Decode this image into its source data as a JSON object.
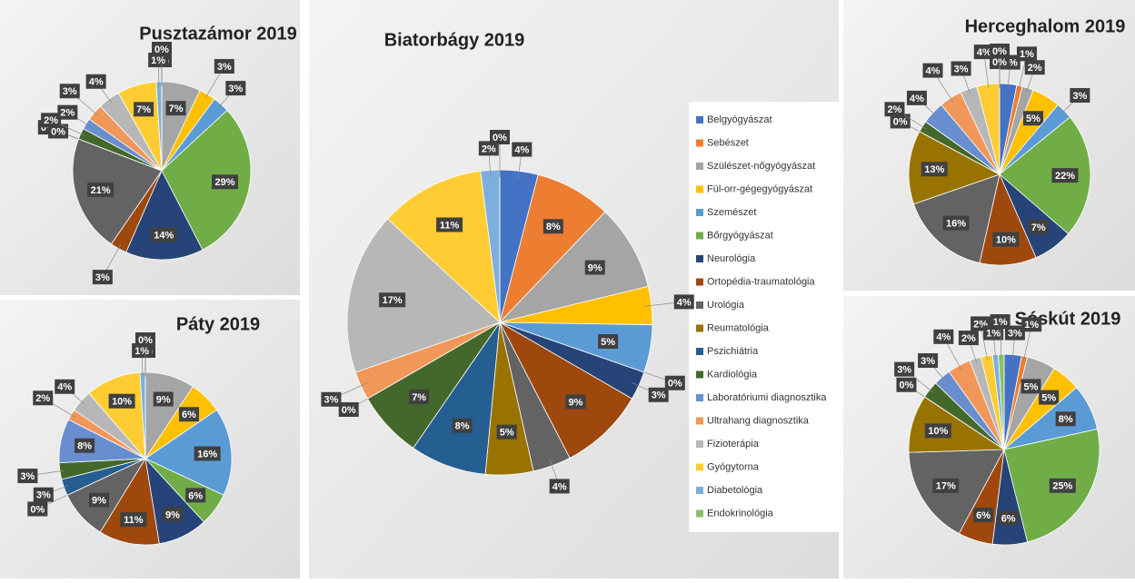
{
  "chart_data": [
    {
      "type": "pie",
      "title": "Biatorbágy 2019",
      "categories": [
        "Belgyógyászat",
        "Sebészet",
        "Szülészet-nőgyógyászat",
        "Fül-orr-gégegyógyászat",
        "Szemészet",
        "Bőrgyógyászat",
        "Neurológia",
        "Ortopédia-traumatológia",
        "Urológia",
        "Reumatológia",
        "Pszichiátria",
        "Kardiológia",
        "Laboratóriumi diagnosztika",
        "Ultrahang diagnosztika",
        "Fizioterápia",
        "Gyógytorna",
        "Diabetológia",
        "Endokrinológia"
      ],
      "colors": [
        "#4472c4",
        "#ed7d31",
        "#a5a5a5",
        "#ffc000",
        "#5b9bd5",
        "#70ad47",
        "#264478",
        "#9e480e",
        "#636363",
        "#997300",
        "#255e91",
        "#43682b",
        "#698ed0",
        "#f1975a",
        "#b7b7b7",
        "#ffcd33",
        "#7cafdd",
        "#8cc168"
      ],
      "values": [
        4,
        8,
        9,
        4,
        5,
        0,
        3,
        9,
        4,
        5,
        8,
        7,
        0,
        3,
        17,
        11,
        2,
        0
      ],
      "value_labels": [
        "4%",
        "8%",
        "9%",
        "4%",
        "5%",
        "0%",
        "3%",
        "9%",
        "4%",
        "5%",
        "8%",
        "7%",
        "0%",
        "3%",
        "17%",
        "11%",
        "2%",
        "0%"
      ],
      "legend": "right"
    },
    {
      "type": "pie",
      "title": "Pusztazámor 2019",
      "values": [
        0,
        0,
        7,
        3,
        3,
        29,
        14,
        3,
        21,
        0,
        0,
        2,
        2,
        3,
        4,
        7,
        1,
        0
      ],
      "value_labels": [
        "0%",
        "0%",
        "7%",
        "3%",
        "3%",
        "29%",
        "14%",
        "3%",
        "21%",
        "0%",
        "0%",
        "2%",
        "2%",
        "3%",
        "4%",
        "7%",
        "1%",
        "0%"
      ]
    },
    {
      "type": "pie",
      "title": "Páty 2019",
      "values": [
        0,
        0,
        9,
        6,
        16,
        6,
        9,
        11,
        9,
        0,
        3,
        3,
        8,
        2,
        4,
        10,
        1,
        0
      ],
      "value_labels": [
        "0%",
        "0%",
        "9%",
        "6%",
        "16%",
        "6%",
        "9%",
        "11%",
        "9%",
        "0%",
        "3%",
        "3%",
        "8%",
        "2%",
        "4%",
        "10%",
        "1%",
        "0%"
      ]
    },
    {
      "type": "pie",
      "title": "Herceghalom 2019",
      "values": [
        3,
        1,
        2,
        5,
        3,
        22,
        7,
        10,
        16,
        13,
        0,
        2,
        4,
        4,
        3,
        4,
        0,
        0
      ],
      "value_labels": [
        "3%",
        "1%",
        "2%",
        "5%",
        "3%",
        "22%",
        "7%",
        "10%",
        "16%",
        "13%",
        "0%",
        "2%",
        "4%",
        "4%",
        "3%",
        "4%",
        "0%",
        "0%"
      ]
    },
    {
      "type": "pie",
      "title": "Sóskút 2019",
      "values": [
        3,
        1,
        5,
        5,
        8,
        25,
        6,
        6,
        17,
        10,
        0,
        3,
        3,
        4,
        2,
        2,
        1,
        1
      ],
      "value_labels": [
        "3%",
        "1%",
        "5%",
        "5%",
        "8%",
        "25%",
        "6%",
        "6%",
        "17%",
        "10%",
        "0%",
        "3%",
        "3%",
        "4%",
        "2%",
        "2%",
        "1%",
        "1%"
      ]
    }
  ]
}
